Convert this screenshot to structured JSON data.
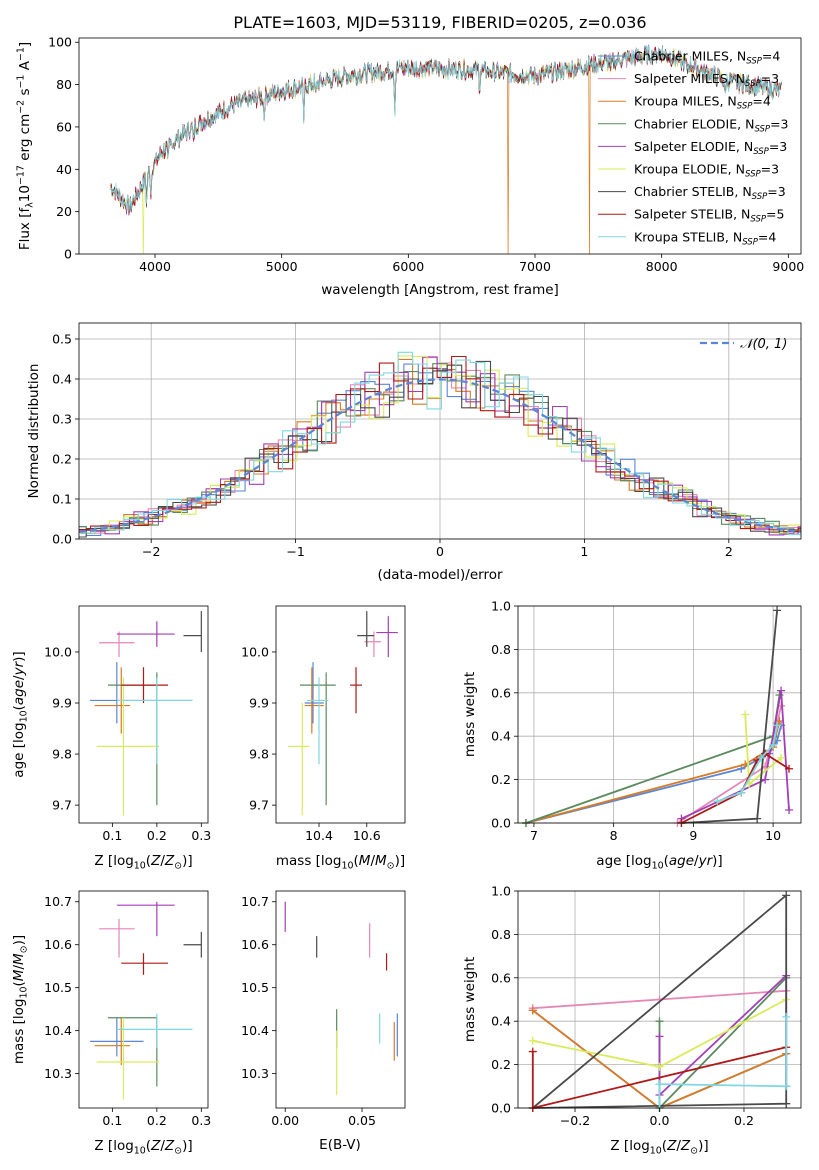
{
  "colors": [
    "#5b86d6",
    "#e587b6",
    "#d97a24",
    "#5b8a5e",
    "#a23fb5",
    "#d9eb5a",
    "#4a4a4a",
    "#b01818",
    "#7fd8e0"
  ],
  "chart_data": [
    {
      "id": "spectrum",
      "type": "line",
      "title": "PLATE=1603, MJD=53119, FIBERID=0205, z=0.036",
      "xlabel": "wavelength [Angstrom, rest frame]",
      "ylabel": "Flux [f$_\\lambda$10$^{-17}$ erg cm$^{-2}$ s$^{-1}$ A$^{-1}$]",
      "ylabel_parts": [
        "Flux [f",
        "λ",
        "10",
        "−17",
        " erg cm",
        "−2",
        " s",
        "−1",
        " A",
        "−1",
        "]"
      ],
      "xlim": [
        3400,
        9100
      ],
      "ylim": [
        0,
        102
      ],
      "xticks": [
        4000,
        5000,
        6000,
        7000,
        8000,
        9000
      ],
      "yticks": [
        0,
        20,
        40,
        60,
        80,
        100
      ],
      "x_range": [
        3650,
        8950
      ],
      "continuum": {
        "x": [
          3650,
          3800,
          3950,
          4050,
          4300,
          4600,
          5000,
          5500,
          6000,
          6500,
          7000,
          7500,
          8000,
          8500,
          8950
        ],
        "y": [
          32,
          22,
          38,
          48,
          60,
          70,
          77,
          84,
          88,
          87,
          84,
          90,
          95,
          82,
          77
        ]
      },
      "dropouts": [
        {
          "series": 5,
          "x": 3910
        },
        {
          "series": 2,
          "x": 6790
        },
        {
          "series": 2,
          "x": 7430
        }
      ],
      "legend": {
        "position": "right",
        "entries": [
          {
            "label": "Chabrier MILES",
            "nssp": "4"
          },
          {
            "label": "Salpeter MILES",
            "nssp": "3"
          },
          {
            "label": "Kroupa MILES",
            "nssp": "4"
          },
          {
            "label": "Chabrier ELODIE",
            "nssp": "3"
          },
          {
            "label": "Salpeter ELODIE",
            "nssp": "3"
          },
          {
            "label": "Kroupa ELODIE",
            "nssp": "3"
          },
          {
            "label": "Chabrier STELIB",
            "nssp": "3"
          },
          {
            "label": "Salpeter STELIB",
            "nssp": "5"
          },
          {
            "label": "Kroupa STELIB",
            "nssp": "4"
          }
        ],
        "nssp_prefix": "N",
        "nssp_sub": "SSP"
      }
    },
    {
      "id": "residuals",
      "type": "histogram",
      "xlabel": "(data-model)/error",
      "ylabel": "Normed distribution",
      "xlim": [
        -2.5,
        2.5
      ],
      "ylim": [
        0,
        0.54
      ],
      "xticks": [
        -2,
        -1,
        0,
        1,
        2
      ],
      "xtick_labels": [
        "−2",
        "−1",
        "0",
        "1",
        "2"
      ],
      "yticks": [
        0,
        0.1,
        0.2,
        0.3,
        0.4,
        0.5
      ],
      "ytick_labels": [
        "0.0",
        "0.1",
        "0.2",
        "0.3",
        "0.4",
        "0.5"
      ],
      "bin_width": 0.1,
      "grid": true,
      "reference": {
        "label": "𝒩(0, 1)",
        "mean": 0,
        "sigma": 1,
        "color": "#5b86d6",
        "style": "dashed"
      },
      "legend_position": "upper right"
    },
    {
      "id": "age_vs_Z",
      "type": "scatter",
      "xlabel": "Z [log10(Z/Z⊙)]",
      "ylabel": "age  [log10(age/yr)]",
      "xlim": [
        0.025,
        0.315
      ],
      "ylim": [
        9.665,
        10.09
      ],
      "xticks": [
        0.1,
        0.2,
        0.3
      ],
      "xtick_labels": [
        "0.1",
        "0.2",
        "0.3"
      ],
      "yticks": [
        9.7,
        9.8,
        9.9,
        10.0
      ],
      "ytick_labels": [
        "9.7",
        "9.8",
        "9.9",
        "10.0"
      ],
      "points": [
        {
          "x": 0.11,
          "y": 9.905,
          "xerr": [
            0.05,
            0.28
          ],
          "yerr": [
            9.86,
            9.98
          ]
        },
        {
          "x": 0.115,
          "y": 10.018,
          "xerr": [
            0.07,
            0.15
          ],
          "yerr": [
            9.99,
            10.04
          ]
        },
        {
          "x": 0.12,
          "y": 9.895,
          "xerr": [
            0.06,
            0.14
          ],
          "yerr": [
            9.84,
            9.97
          ]
        },
        {
          "x": 0.2,
          "y": 9.935,
          "xerr": [
            0.09,
            0.2
          ],
          "yerr": [
            9.7,
            9.96
          ]
        },
        {
          "x": 0.2,
          "y": 10.035,
          "xerr": [
            0.11,
            0.24
          ],
          "yerr": [
            10.01,
            10.06
          ]
        },
        {
          "x": 0.125,
          "y": 9.815,
          "xerr": [
            0.065,
            0.205
          ],
          "yerr": [
            9.68,
            9.95
          ]
        },
        {
          "x": 0.3,
          "y": 10.032,
          "xerr": [
            0.26,
            0.3
          ],
          "yerr": [
            10.0,
            10.08
          ]
        },
        {
          "x": 0.17,
          "y": 9.935,
          "xerr": [
            0.12,
            0.225
          ],
          "yerr": [
            9.9,
            9.97
          ]
        },
        {
          "x": 0.2,
          "y": 9.905,
          "xerr": [
            0.11,
            0.28
          ],
          "yerr": [
            9.78,
            9.95
          ]
        }
      ]
    },
    {
      "id": "age_vs_mass",
      "type": "scatter",
      "xlabel": "mass [log10(M/M⊙)]",
      "ylabel": "",
      "xlim": [
        10.22,
        10.76
      ],
      "ylim": [
        9.665,
        10.09
      ],
      "xticks": [
        10.4,
        10.6
      ],
      "xtick_labels": [
        "10.4",
        "10.6"
      ],
      "yticks": [
        9.7,
        9.8,
        9.9,
        10.0
      ],
      "ytick_labels": [
        "9.7",
        "9.8",
        "9.9",
        "10.0"
      ],
      "points": [
        {
          "x": 10.375,
          "y": 9.9,
          "xerr": [
            10.34,
            10.42
          ],
          "yerr": [
            9.86,
            9.98
          ]
        },
        {
          "x": 10.63,
          "y": 10.02,
          "xerr": [
            10.59,
            10.66
          ],
          "yerr": [
            9.99,
            10.04
          ]
        },
        {
          "x": 10.37,
          "y": 9.895,
          "xerr": [
            10.34,
            10.42
          ],
          "yerr": [
            9.84,
            9.97
          ]
        },
        {
          "x": 10.43,
          "y": 9.935,
          "xerr": [
            10.32,
            10.47
          ],
          "yerr": [
            9.7,
            9.96
          ]
        },
        {
          "x": 10.69,
          "y": 10.038,
          "xerr": [
            10.64,
            10.73
          ],
          "yerr": [
            9.99,
            10.07
          ]
        },
        {
          "x": 10.33,
          "y": 9.815,
          "xerr": [
            10.27,
            10.36
          ],
          "yerr": [
            9.68,
            9.9
          ]
        },
        {
          "x": 10.6,
          "y": 10.032,
          "xerr": [
            10.56,
            10.63
          ],
          "yerr": [
            10.01,
            10.08
          ]
        },
        {
          "x": 10.555,
          "y": 9.935,
          "xerr": [
            10.53,
            10.58
          ],
          "yerr": [
            9.88,
            9.97
          ]
        },
        {
          "x": 10.4,
          "y": 9.905,
          "xerr": [
            10.35,
            10.44
          ],
          "yerr": [
            9.78,
            9.95
          ]
        }
      ]
    },
    {
      "id": "mass_weight_vs_age",
      "type": "line",
      "xlabel": "age  [log10(age/yr)]",
      "ylabel": "mass weight",
      "xlim": [
        6.8,
        10.35
      ],
      "ylim": [
        0,
        1
      ],
      "xticks": [
        7,
        8,
        9,
        10
      ],
      "xtick_labels": [
        "7",
        "8",
        "9",
        "10"
      ],
      "yticks": [
        0,
        0.2,
        0.4,
        0.6,
        0.8,
        1.0
      ],
      "ytick_labels": [
        "0.0",
        "0.2",
        "0.4",
        "0.6",
        "0.8",
        "1.0"
      ],
      "grid": true,
      "series": [
        {
          "x": [
            6.9,
            9.6,
            9.95,
            10.05,
            10.1
          ],
          "y": [
            0.0,
            0.25,
            0.32,
            0.38,
            0.45
          ]
        },
        {
          "x": [
            8.8,
            9.9,
            10.05,
            10.1
          ],
          "y": [
            0.0,
            0.26,
            0.46,
            0.54
          ]
        },
        {
          "x": [
            6.9,
            9.65,
            10.0,
            10.08
          ],
          "y": [
            0.0,
            0.27,
            0.35,
            0.47
          ]
        },
        {
          "x": [
            6.9,
            10.0,
            10.08
          ],
          "y": [
            0.0,
            0.4,
            0.59
          ]
        },
        {
          "x": [
            8.85,
            9.9,
            10.1,
            10.2
          ],
          "y": [
            0.02,
            0.2,
            0.61,
            0.06
          ]
        },
        {
          "x": [
            9.65,
            9.7,
            10.1
          ],
          "y": [
            0.5,
            0.18,
            0.3
          ]
        },
        {
          "x": [
            8.85,
            9.8,
            10.05
          ],
          "y": [
            0.0,
            0.02,
            0.98
          ]
        },
        {
          "x": [
            8.85,
            9.6,
            9.8,
            9.9,
            10.2
          ],
          "y": [
            0.0,
            0.14,
            0.29,
            0.32,
            0.25
          ]
        },
        {
          "x": [
            9.3,
            9.6,
            9.85,
            10.0,
            10.05
          ],
          "y": [
            0.1,
            0.14,
            0.3,
            0.36,
            0.45
          ]
        }
      ]
    },
    {
      "id": "mass_vs_Z",
      "type": "scatter",
      "xlabel": "Z [log10(Z/Z⊙)]",
      "ylabel": "mass [log10(M/M⊙)]",
      "xlim": [
        0.025,
        0.315
      ],
      "ylim": [
        10.22,
        10.725
      ],
      "xticks": [
        0.1,
        0.2,
        0.3
      ],
      "xtick_labels": [
        "0.1",
        "0.2",
        "0.3"
      ],
      "yticks": [
        10.3,
        10.4,
        10.5,
        10.6,
        10.7
      ],
      "ytick_labels": [
        "10.3",
        "10.4",
        "10.5",
        "10.6",
        "10.7"
      ],
      "points": [
        {
          "x": 0.11,
          "y": 10.375,
          "xerr": [
            0.05,
            0.17
          ],
          "yerr": [
            10.34,
            10.43
          ]
        },
        {
          "x": 0.115,
          "y": 10.637,
          "xerr": [
            0.07,
            0.15
          ],
          "yerr": [
            10.57,
            10.66
          ]
        },
        {
          "x": 0.12,
          "y": 10.365,
          "xerr": [
            0.06,
            0.14
          ],
          "yerr": [
            10.32,
            10.43
          ]
        },
        {
          "x": 0.2,
          "y": 10.43,
          "xerr": [
            0.09,
            0.2
          ],
          "yerr": [
            10.27,
            10.43
          ]
        },
        {
          "x": 0.2,
          "y": 10.692,
          "xerr": [
            0.11,
            0.24
          ],
          "yerr": [
            10.62,
            10.7
          ]
        },
        {
          "x": 0.125,
          "y": 10.327,
          "xerr": [
            0.065,
            0.205
          ],
          "yerr": [
            10.24,
            10.43
          ]
        },
        {
          "x": 0.3,
          "y": 10.6,
          "xerr": [
            0.26,
            0.3
          ],
          "yerr": [
            10.57,
            10.63
          ]
        },
        {
          "x": 0.17,
          "y": 10.557,
          "xerr": [
            0.12,
            0.225
          ],
          "yerr": [
            10.53,
            10.58
          ]
        },
        {
          "x": 0.2,
          "y": 10.403,
          "xerr": [
            0.11,
            0.28
          ],
          "yerr": [
            10.36,
            10.44
          ]
        }
      ]
    },
    {
      "id": "mass_vs_ebv",
      "type": "scatter",
      "xlabel": "E(B-V)",
      "ylabel": "",
      "xlim": [
        -0.006,
        0.078
      ],
      "ylim": [
        10.22,
        10.725
      ],
      "xticks": [
        0.0,
        0.05
      ],
      "xtick_labels": [
        "0.00",
        "0.05"
      ],
      "yticks": [
        10.3,
        10.4,
        10.5,
        10.6,
        10.7
      ],
      "ytick_labels": [
        "10.3",
        "10.4",
        "10.5",
        "10.6",
        "10.7"
      ],
      "points": [
        {
          "x": 0.073,
          "y": 10.385,
          "yerr": [
            10.34,
            10.44
          ]
        },
        {
          "x": 0.055,
          "y": 10.612,
          "yerr": [
            10.57,
            10.65
          ]
        },
        {
          "x": 0.071,
          "y": 10.37,
          "yerr": [
            10.33,
            10.42
          ]
        },
        {
          "x": 0.0335,
          "y": 10.4,
          "yerr": [
            10.36,
            10.45
          ]
        },
        {
          "x": 0.0,
          "y": 10.665,
          "yerr": [
            10.63,
            10.7
          ]
        },
        {
          "x": 0.0335,
          "y": 10.33,
          "yerr": [
            10.25,
            10.4
          ]
        },
        {
          "x": 0.0205,
          "y": 10.595,
          "yerr": [
            10.57,
            10.62
          ]
        },
        {
          "x": 0.066,
          "y": 10.555,
          "yerr": [
            10.54,
            10.58
          ]
        },
        {
          "x": 0.0615,
          "y": 10.4,
          "yerr": [
            10.37,
            10.44
          ]
        }
      ]
    },
    {
      "id": "mass_weight_vs_Z",
      "type": "line",
      "xlabel": "Z [log10(Z/Z⊙)]",
      "ylabel": "mass weight",
      "xlim": [
        -0.335,
        0.335
      ],
      "ylim": [
        0,
        1
      ],
      "xticks": [
        -0.2,
        0.0,
        0.2
      ],
      "xtick_labels": [
        "−0.2",
        "0.0",
        "0.2"
      ],
      "yticks": [
        0,
        0.2,
        0.4,
        0.6,
        0.8,
        1.0
      ],
      "ytick_labels": [
        "0.0",
        "0.2",
        "0.4",
        "0.6",
        "0.8",
        "1.0"
      ],
      "grid": true,
      "series": [
        {
          "x": [
            -0.3,
            0.0,
            0.3
          ],
          "y": [
            0.45,
            0.0,
            0.25
          ]
        },
        {
          "x": [
            -0.3,
            0.0,
            0.3
          ],
          "y": [
            0.46,
            0.5,
            0.54
          ]
        },
        {
          "x": [
            -0.3,
            0.0,
            0.3
          ],
          "y": [
            0.45,
            0.0,
            0.25
          ]
        },
        {
          "x": [
            0.0,
            0.0,
            0.3
          ],
          "y": [
            0.4,
            0.0,
            0.6
          ]
        },
        {
          "x": [
            0.0,
            0.0,
            0.3,
            0.3
          ],
          "y": [
            0.33,
            0.06,
            0.61,
            0.1
          ]
        },
        {
          "x": [
            -0.3,
            0.0,
            0.3
          ],
          "y": [
            0.31,
            0.19,
            0.5
          ]
        },
        {
          "x": [
            0.3,
            -0.3,
            0.3,
            0.3
          ],
          "y": [
            0.02,
            0.0,
            0.98,
            0.02
          ]
        },
        {
          "x": [
            -0.3,
            -0.3,
            0.3
          ],
          "y": [
            0.26,
            0.0,
            0.28
          ]
        },
        {
          "x": [
            0.0,
            0.0,
            0.3,
            0.3
          ],
          "y": [
            0.0,
            0.11,
            0.1,
            0.42
          ]
        }
      ]
    }
  ]
}
